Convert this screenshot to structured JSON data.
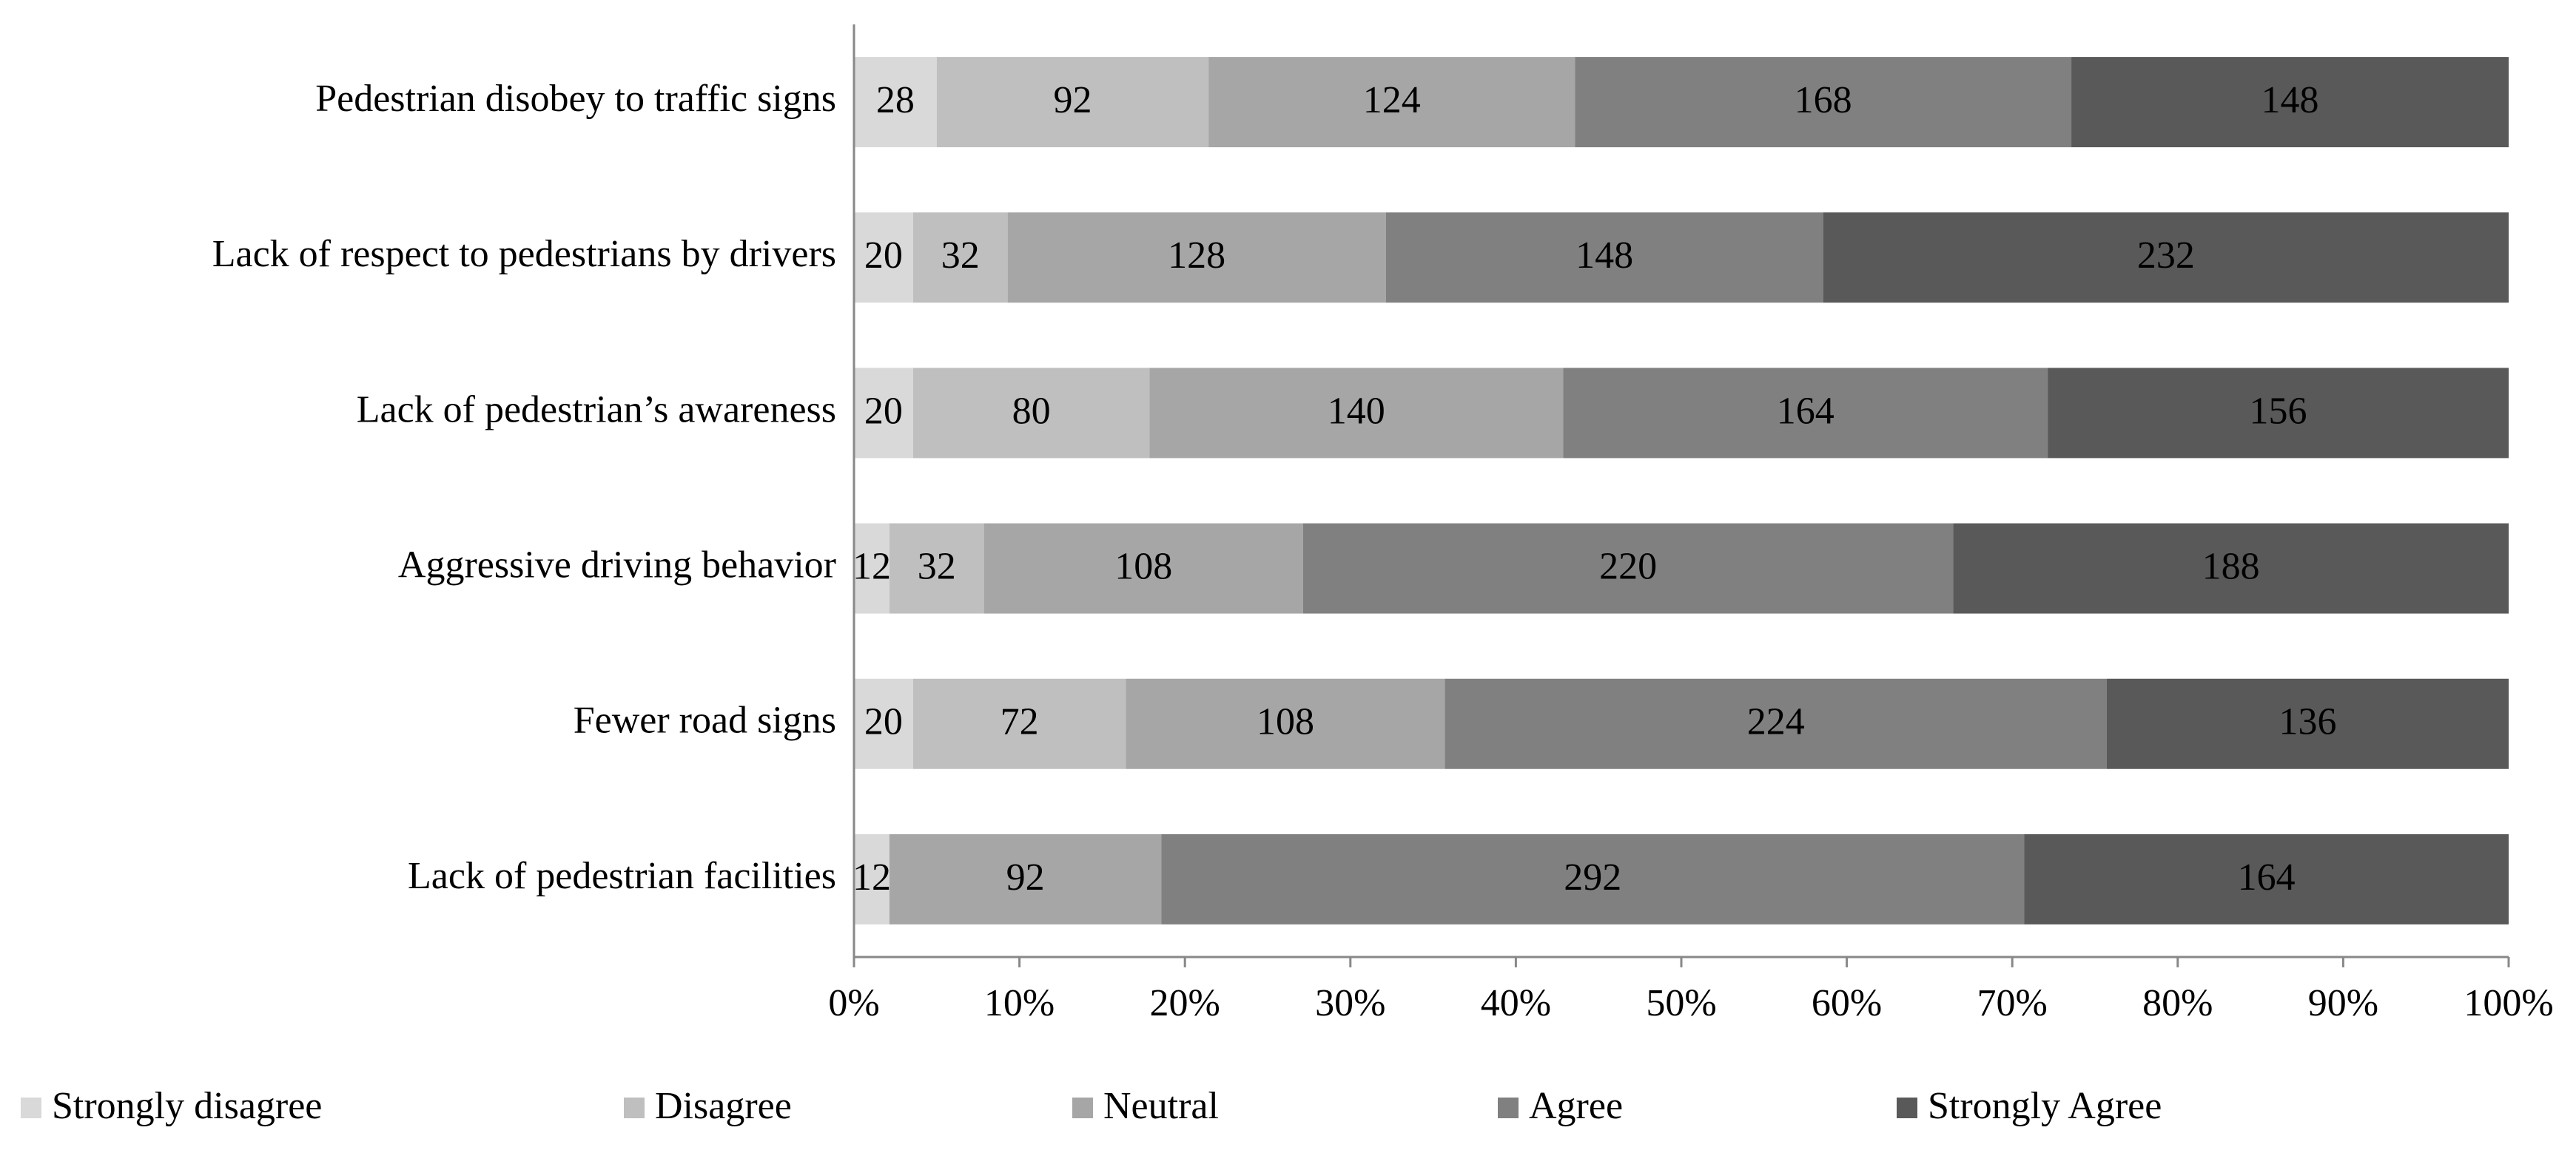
{
  "chart_data": {
    "type": "bar",
    "orientation": "horizontal",
    "stacked": "percent",
    "categories": [
      "Pedestrian disobey to traffic signs",
      "Lack of respect to pedestrians by drivers",
      "Lack of pedestrian’s awareness",
      "Aggressive driving behavior",
      "Fewer road signs",
      "Lack of pedestrian facilities"
    ],
    "series": [
      {
        "name": "Strongly disagree",
        "color": "#d9d9d9",
        "values": [
          28,
          20,
          20,
          12,
          20,
          12
        ]
      },
      {
        "name": "Disagree",
        "color": "#bfbfbf",
        "values": [
          92,
          32,
          80,
          32,
          72,
          null
        ]
      },
      {
        "name": "Neutral",
        "color": "#a6a6a6",
        "values": [
          124,
          128,
          140,
          108,
          108,
          92
        ]
      },
      {
        "name": "Agree",
        "color": "#808080",
        "values": [
          168,
          148,
          164,
          220,
          224,
          292
        ]
      },
      {
        "name": "Strongly Agree",
        "color": "#595959",
        "values": [
          148,
          232,
          156,
          188,
          136,
          164
        ]
      }
    ],
    "xlim": [
      0,
      100
    ],
    "xticks": [
      {
        "value": 0,
        "label": "0%"
      },
      {
        "value": 10,
        "label": "10%"
      },
      {
        "value": 20,
        "label": "20%"
      },
      {
        "value": 30,
        "label": "30%"
      },
      {
        "value": 40,
        "label": "40%"
      },
      {
        "value": 50,
        "label": "50%"
      },
      {
        "value": 60,
        "label": "60%"
      },
      {
        "value": 70,
        "label": "70%"
      },
      {
        "value": 80,
        "label": "80%"
      },
      {
        "value": 90,
        "label": "90%"
      },
      {
        "value": 100,
        "label": "100%"
      }
    ],
    "grid": false,
    "legend": "bottom"
  }
}
